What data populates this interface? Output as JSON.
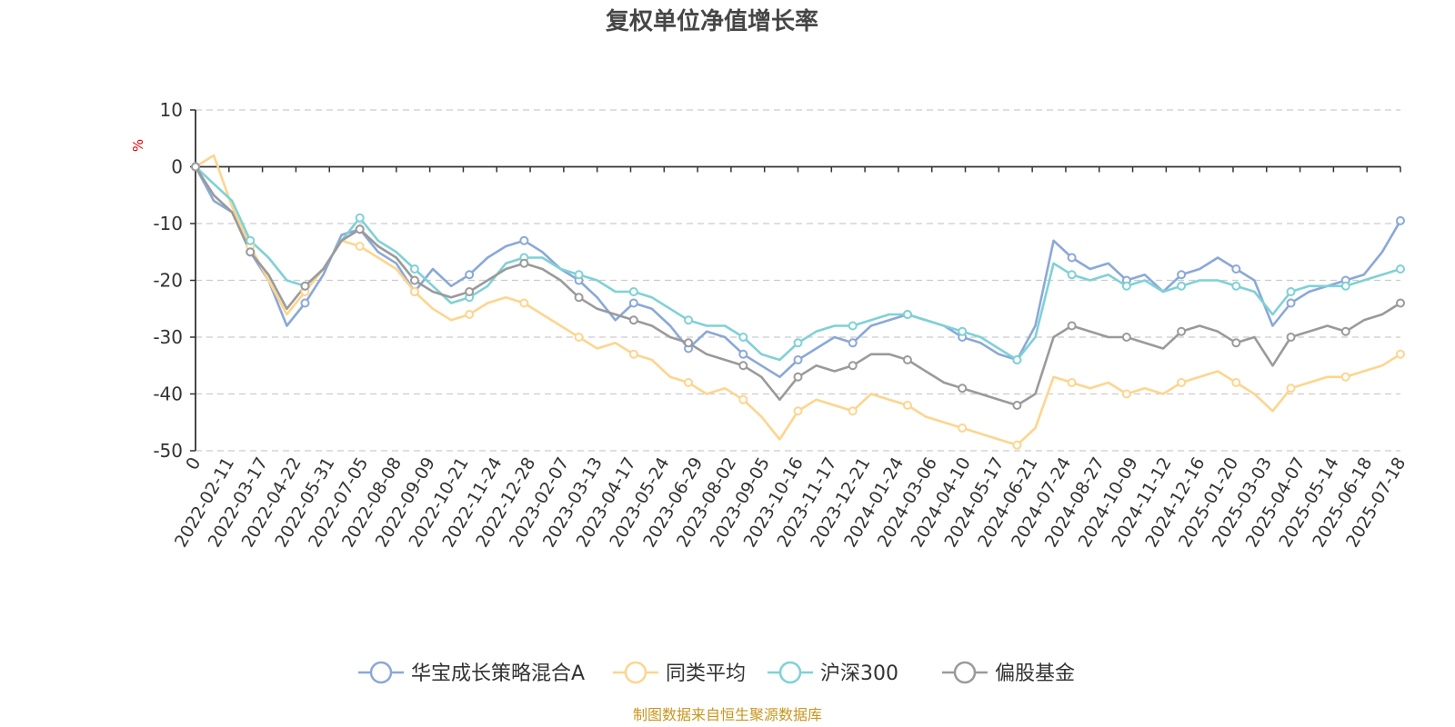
{
  "chart_data": {
    "type": "line",
    "title": "复权单位净值增长率",
    "yunit": "%",
    "ylim": [
      -50,
      10
    ],
    "yticks": [
      10,
      0,
      -10,
      -20,
      -30,
      -40,
      -50
    ],
    "grid": "dashed horizontal",
    "legend_position": "bottom-center",
    "x_tick_labels": [
      "0",
      "2022-02-11",
      "2022-03-17",
      "2022-04-22",
      "2022-05-31",
      "2022-07-05",
      "2022-08-08",
      "2022-09-09",
      "2022-10-21",
      "2022-11-24",
      "2022-12-28",
      "2023-02-07",
      "2023-03-13",
      "2023-04-17",
      "2023-05-24",
      "2023-06-29",
      "2023-08-02",
      "2023-09-05",
      "2023-10-16",
      "2023-11-17",
      "2023-12-21",
      "2024-01-24",
      "2024-03-06",
      "2024-04-10",
      "2024-05-17",
      "2024-06-21",
      "2024-07-24",
      "2024-08-27",
      "2024-10-09",
      "2024-11-12",
      "2024-12-16",
      "2025-01-20",
      "2025-03-03",
      "2025-04-07",
      "2025-05-14",
      "2025-06-18",
      "2025-07-18"
    ],
    "series": [
      {
        "name": "华宝成长策略混合A",
        "color": "#8aa8d8",
        "values": [
          0,
          -6,
          -8,
          -15,
          -20,
          -28,
          -24,
          -19,
          -12,
          -11,
          -15,
          -17,
          -22,
          -18,
          -21,
          -19,
          -16,
          -14,
          -13,
          -15,
          -18,
          -20,
          -23,
          -27,
          -24,
          -25,
          -28,
          -32,
          -29,
          -30,
          -33,
          -35,
          -37,
          -34,
          -32,
          -30,
          -31,
          -28,
          -27,
          -26,
          -27,
          -28,
          -30,
          -31,
          -33,
          -34,
          -28,
          -13,
          -16,
          -18,
          -17,
          -20,
          -19,
          -22,
          -19,
          -18,
          -16,
          -18,
          -20,
          -28,
          -24,
          -22,
          -21,
          -20,
          -19,
          -15,
          -9.5
        ]
      },
      {
        "name": "同类平均",
        "color": "#fdd58e",
        "values": [
          0,
          2,
          -7,
          -14,
          -20,
          -26,
          -22,
          -18,
          -13,
          -14,
          -16,
          -18,
          -22,
          -25,
          -27,
          -26,
          -24,
          -23,
          -24,
          -26,
          -28,
          -30,
          -32,
          -31,
          -33,
          -34,
          -37,
          -38,
          -40,
          -39,
          -41,
          -44,
          -48,
          -43,
          -41,
          -42,
          -43,
          -40,
          -41,
          -42,
          -44,
          -45,
          -46,
          -47,
          -48,
          -49,
          -46,
          -37,
          -38,
          -39,
          -38,
          -40,
          -39,
          -40,
          -38,
          -37,
          -36,
          -38,
          -40,
          -43,
          -39,
          -38,
          -37,
          -37,
          -36,
          -35,
          -33
        ]
      },
      {
        "name": "沪深300",
        "color": "#7fd1d6",
        "values": [
          0,
          -3,
          -6,
          -13,
          -16,
          -20,
          -21,
          -18,
          -13,
          -9,
          -13,
          -15,
          -18,
          -21,
          -24,
          -23,
          -21,
          -17,
          -16,
          -16,
          -18,
          -19,
          -20,
          -22,
          -22,
          -23,
          -25,
          -27,
          -28,
          -28,
          -30,
          -33,
          -34,
          -31,
          -29,
          -28,
          -28,
          -27,
          -26,
          -26,
          -27,
          -28,
          -29,
          -30,
          -32,
          -34,
          -30,
          -17,
          -19,
          -20,
          -19,
          -21,
          -20,
          -22,
          -21,
          -20,
          -20,
          -21,
          -22,
          -26,
          -22,
          -21,
          -21,
          -21,
          -20,
          -19,
          -18
        ]
      },
      {
        "name": "偏股基金",
        "color": "#9a9a9a",
        "values": [
          0,
          -5,
          -8,
          -15,
          -19,
          -25,
          -21,
          -18,
          -13,
          -11,
          -14,
          -16,
          -20,
          -22,
          -23,
          -22,
          -20,
          -18,
          -17,
          -18,
          -20,
          -23,
          -25,
          -26,
          -27,
          -28,
          -30,
          -31,
          -33,
          -34,
          -35,
          -37,
          -41,
          -37,
          -35,
          -36,
          -35,
          -33,
          -33,
          -34,
          -36,
          -38,
          -39,
          -40,
          -41,
          -42,
          -40,
          -30,
          -28,
          -29,
          -30,
          -30,
          -31,
          -32,
          -29,
          -28,
          -29,
          -31,
          -30,
          -35,
          -30,
          -29,
          -28,
          -29,
          -27,
          -26,
          -24
        ]
      }
    ]
  },
  "source_note": "制图数据来自恒生聚源数据库"
}
